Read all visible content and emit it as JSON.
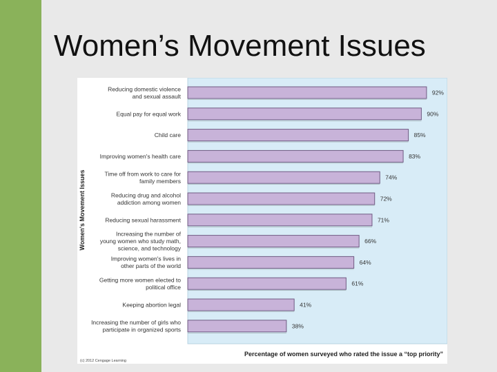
{
  "slide": {
    "title": "Women’s Movement Issues"
  },
  "chart_data": {
    "type": "bar",
    "orientation": "horizontal",
    "ylabel": "Women's Movement Issues",
    "xlabel": "Percentage of women surveyed who rated the issue a “top priority”",
    "credit": "(c) 2012 Cengage Learning",
    "categories": [
      [
        "Reducing domestic violence",
        "and sexual assault"
      ],
      [
        "Equal pay for equal work"
      ],
      [
        "Child care"
      ],
      [
        "Improving women's health care"
      ],
      [
        "Time off from work to care for",
        "family members"
      ],
      [
        "Reducing drug and alcohol",
        "addiction among women"
      ],
      [
        "Reducing sexual harassment"
      ],
      [
        "Increasing the number of",
        "young women who study math,",
        "science, and technology"
      ],
      [
        "Improving women's lives in",
        "other parts of the world"
      ],
      [
        "Getting more women elected to",
        "political office"
      ],
      [
        "Keeping abortion legal"
      ],
      [
        "Increasing the number of girls who",
        "participate in organized sports"
      ]
    ],
    "values": [
      92,
      90,
      85,
      83,
      74,
      72,
      71,
      66,
      64,
      61,
      41,
      38
    ],
    "value_labels": [
      "92%",
      "90%",
      "85%",
      "83%",
      "74%",
      "72%",
      "71%",
      "66%",
      "64%",
      "61%",
      "41%",
      "38%"
    ],
    "xlim": [
      0,
      100
    ],
    "colors": {
      "bar": "#c8b3d9",
      "bar_edge": "#6f5a82",
      "plot_bg": "#d8ecf7",
      "accent": "#8ab25a"
    }
  }
}
